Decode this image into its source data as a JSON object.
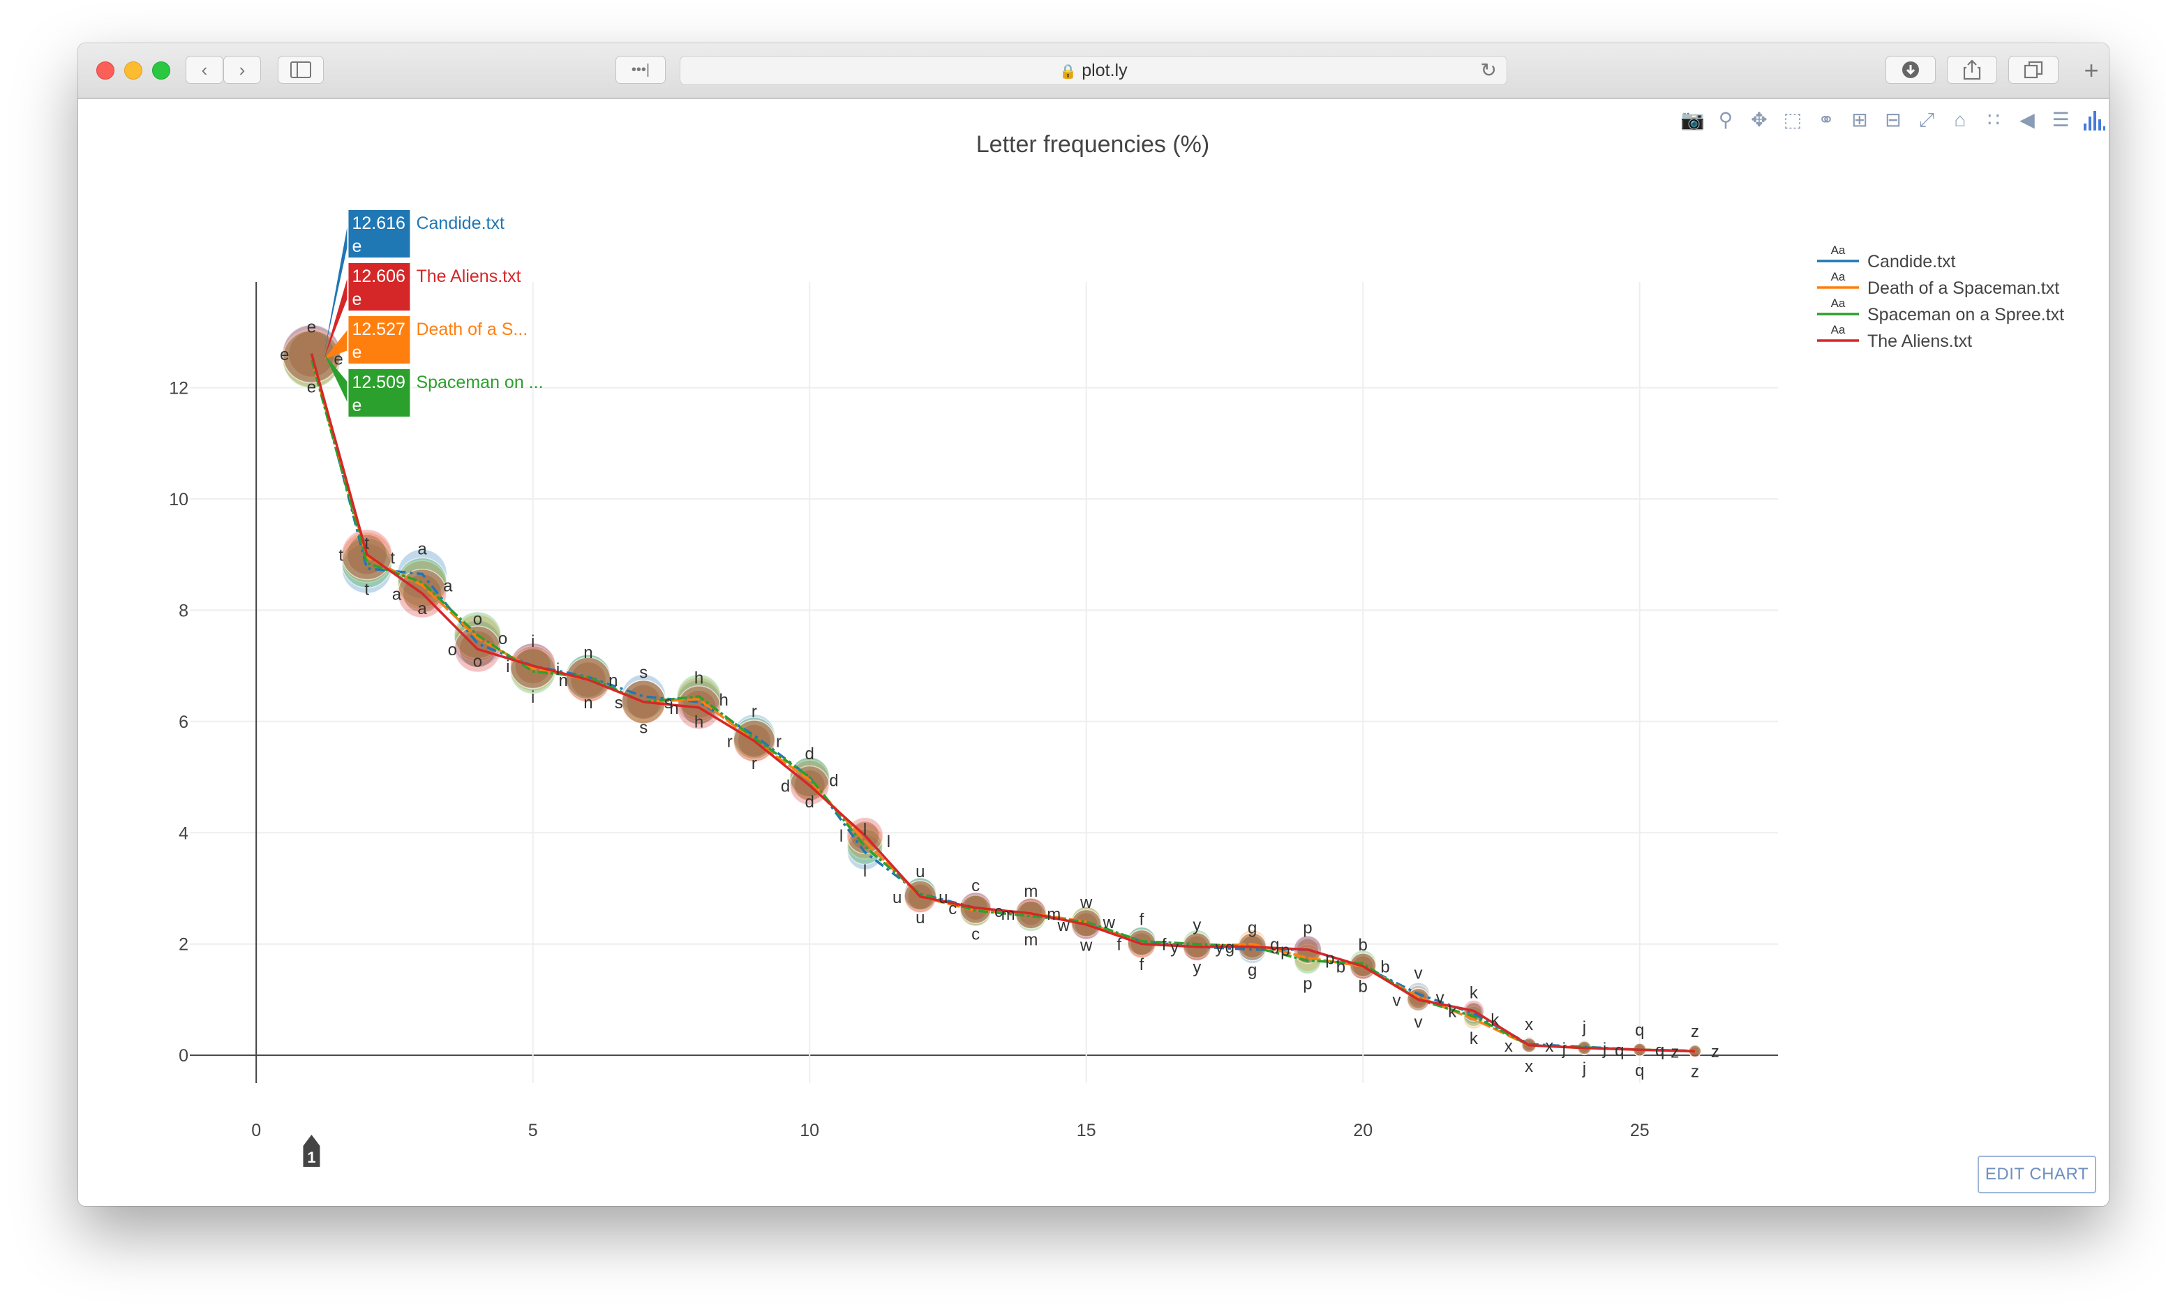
{
  "browser": {
    "url": "plot.ly",
    "dots": "•••|"
  },
  "modebar": {
    "icons": [
      "camera-icon",
      "zoom-icon",
      "pan-icon",
      "box-select-icon",
      "lasso-icon",
      "zoom-in-icon",
      "zoom-out-icon",
      "autoscale-icon",
      "reset-axes-icon",
      "spike-lines-icon",
      "hover-closest-icon",
      "hover-compare-icon",
      "plotly-logo-icon"
    ]
  },
  "edit_chart_label": "EDIT CHART",
  "chart_data": {
    "type": "line",
    "title": "Letter frequencies (%)",
    "xlabel": "",
    "ylabel": "",
    "xlim": [
      -1.2,
      27.5
    ],
    "ylim": [
      -0.5,
      13.9
    ],
    "xticks": [
      0,
      5,
      10,
      15,
      20,
      25
    ],
    "yticks": [
      0,
      2,
      4,
      6,
      8,
      10,
      12
    ],
    "x": [
      1,
      2,
      3,
      4,
      5,
      6,
      7,
      8,
      9,
      10,
      11,
      12,
      13,
      14,
      15,
      16,
      17,
      18,
      19,
      20,
      21,
      22,
      23,
      24,
      25,
      26
    ],
    "letters": [
      "e",
      "t",
      "a",
      "o",
      "i",
      "n",
      "s",
      "h",
      "r",
      "d",
      "l",
      "u",
      "c",
      "m",
      "w",
      "f",
      "y",
      "g",
      "p",
      "b",
      "v",
      "k",
      "x",
      "j",
      "q",
      "z"
    ],
    "legend_position": "top-right",
    "legend_marker": "Aa",
    "series": [
      {
        "name": "Candide.txt",
        "color": "#1f77b4",
        "values": [
          12.616,
          8.75,
          8.65,
          7.4,
          7.0,
          6.8,
          6.45,
          6.35,
          5.75,
          5.0,
          3.65,
          2.9,
          2.65,
          2.55,
          2.35,
          2.05,
          1.95,
          1.9,
          1.9,
          1.6,
          1.1,
          0.75,
          0.2,
          0.15,
          0.1,
          0.08
        ]
      },
      {
        "name": "Death of a Spaceman.txt",
        "color": "#ff7f0e",
        "values": [
          12.527,
          8.95,
          8.45,
          7.5,
          6.95,
          6.75,
          6.35,
          6.4,
          5.65,
          4.95,
          3.85,
          2.85,
          2.6,
          2.55,
          2.4,
          2.0,
          1.95,
          2.0,
          1.75,
          1.6,
          1.05,
          0.65,
          0.18,
          0.13,
          0.1,
          0.08
        ]
      },
      {
        "name": "Spaceman on a Spree.txt",
        "color": "#2ca02c",
        "values": [
          12.509,
          8.85,
          8.5,
          7.55,
          6.9,
          6.8,
          6.35,
          6.45,
          5.7,
          5.0,
          3.75,
          2.9,
          2.6,
          2.5,
          2.4,
          2.05,
          2.0,
          1.95,
          1.7,
          1.65,
          1.0,
          0.7,
          0.18,
          0.14,
          0.1,
          0.08
        ]
      },
      {
        "name": "The Aliens.txt",
        "color": "#d62728",
        "values": [
          12.606,
          9.0,
          8.3,
          7.3,
          7.0,
          6.75,
          6.35,
          6.25,
          5.65,
          4.85,
          3.95,
          2.85,
          2.65,
          2.55,
          2.35,
          2.0,
          1.95,
          1.95,
          1.9,
          1.6,
          1.0,
          0.8,
          0.18,
          0.13,
          0.1,
          0.07
        ]
      }
    ],
    "hover": {
      "x": 1,
      "x_badge": "1",
      "boxes": [
        {
          "value": "12.606",
          "letter": "e",
          "name": "The Aliens.txt",
          "color": "#d62728"
        },
        {
          "value": "12.527",
          "letter": "e",
          "name": "Death of a S...",
          "color": "#ff7f0e"
        },
        {
          "value": "12.509",
          "letter": "e",
          "name": "Spaceman on ...",
          "color": "#2ca02c"
        }
      ]
    }
  }
}
